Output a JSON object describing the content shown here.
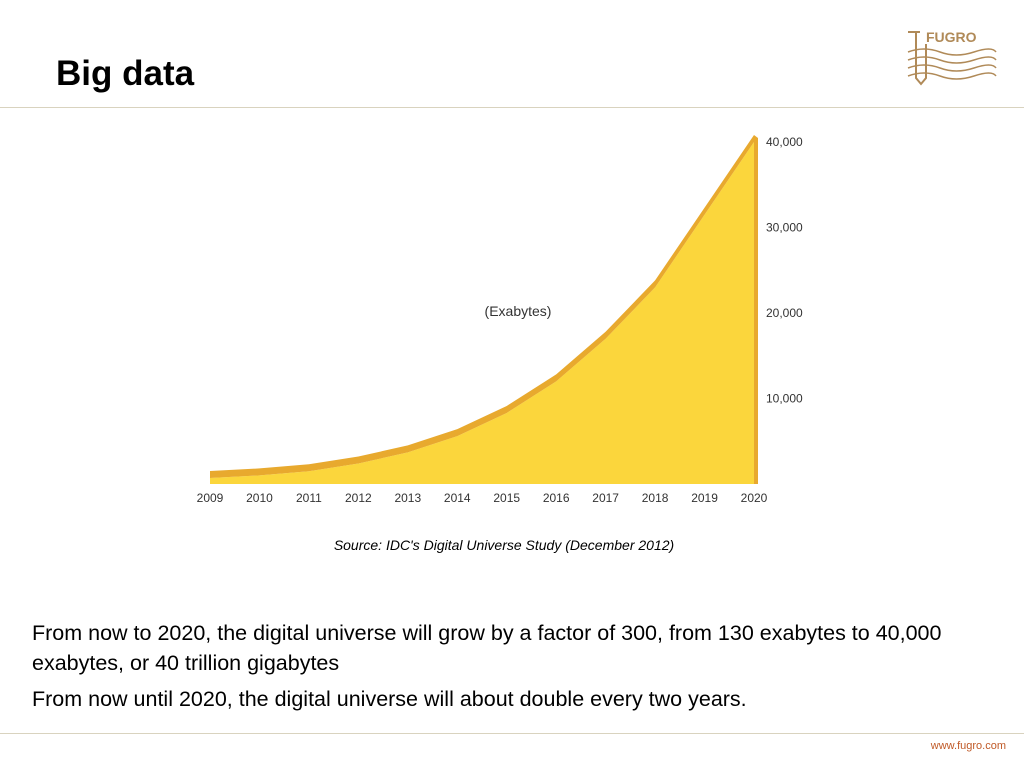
{
  "slide": {
    "title": "Big data",
    "source": "Source: IDC's Digital Universe Study (December 2012)",
    "paragraphs": [
      "From now to 2020, the digital universe will grow by a factor of 300, from 130 exabytes to 40,000 exabytes, or 40 trillion gigabytes",
      "From now until 2020, the digital universe will about double every two years."
    ],
    "footer_url": "www.fugro.com",
    "logo_text": "FUGRO"
  },
  "colors": {
    "area_fill": "#fbd63c",
    "area_edge": "#e8a92e",
    "rule": "#d9d3bf",
    "footer": "#c05a28",
    "logo": "#b08a58"
  },
  "chart_data": {
    "type": "area",
    "x": [
      "2009",
      "2010",
      "2011",
      "2012",
      "2013",
      "2014",
      "2015",
      "2016",
      "2017",
      "2018",
      "2019",
      "2020"
    ],
    "values": [
      700,
      1000,
      1500,
      2400,
      3700,
      5600,
      8300,
      12000,
      17000,
      23000,
      31500,
      40000
    ],
    "annotation": "(Exabytes)",
    "ylim": [
      0,
      40000
    ],
    "yticks": [
      10000,
      20000,
      30000,
      40000
    ],
    "ytick_labels": [
      "10,000",
      "20,000",
      "30,000",
      "40,000"
    ],
    "yaxis_position": "right",
    "grid": false
  }
}
